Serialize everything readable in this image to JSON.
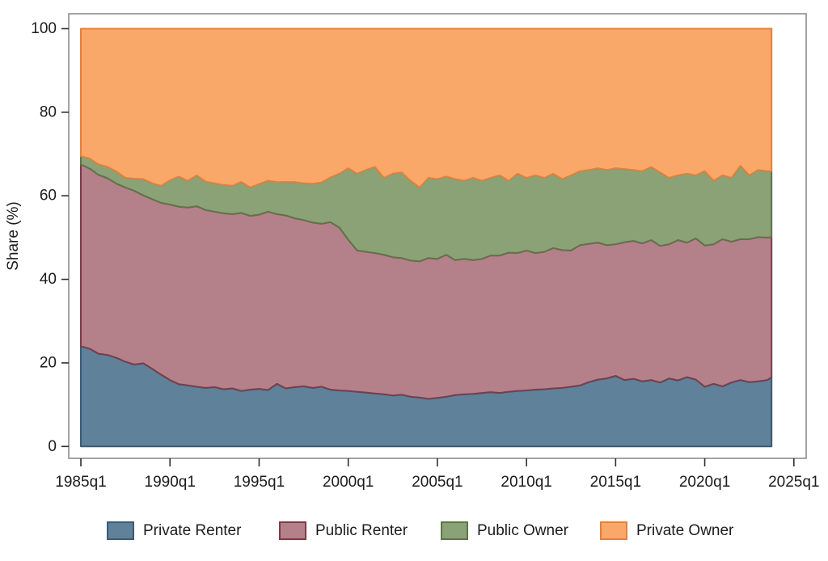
{
  "figure": {
    "background_color": "#ffffff",
    "frame_color": "#8d8d8d",
    "tick_color": "#2f2f2f",
    "text_color": "#1c1c1c"
  },
  "chart_data": {
    "type": "area",
    "stacked": true,
    "title": "",
    "xlabel": "",
    "ylabel": "Share (%)",
    "ylim": [
      0,
      100
    ],
    "xlim": [
      1985,
      2025
    ],
    "grid": false,
    "legend_position": "bottom",
    "x_axis": {
      "ticks": [
        {
          "value": 1985,
          "label": "1985q1"
        },
        {
          "value": 1990,
          "label": "1990q1"
        },
        {
          "value": 1995,
          "label": "1995q1"
        },
        {
          "value": 2000,
          "label": "2000q1"
        },
        {
          "value": 2005,
          "label": "2005q1"
        },
        {
          "value": 2010,
          "label": "2010q1"
        },
        {
          "value": 2015,
          "label": "2015q1"
        },
        {
          "value": 2020,
          "label": "2020q1"
        },
        {
          "value": 2025,
          "label": "2025q1"
        }
      ]
    },
    "y_axis": {
      "title": "Share (%)",
      "ticks": [
        {
          "value": 0,
          "label": "0"
        },
        {
          "value": 20,
          "label": "20"
        },
        {
          "value": 40,
          "label": "40"
        },
        {
          "value": 60,
          "label": "60"
        },
        {
          "value": 80,
          "label": "80"
        },
        {
          "value": 100,
          "label": "100"
        }
      ]
    },
    "x": [
      1985,
      1985.5,
      1986,
      1986.5,
      1987,
      1987.5,
      1988,
      1988.5,
      1989,
      1989.5,
      1990,
      1990.5,
      1991,
      1991.5,
      1992,
      1992.5,
      1993,
      1993.5,
      1994,
      1994.5,
      1995,
      1995.5,
      1996,
      1996.5,
      1997,
      1997.5,
      1998,
      1998.5,
      1999,
      1999.5,
      2000,
      2000.5,
      2001,
      2001.5,
      2002,
      2002.5,
      2003,
      2003.5,
      2004,
      2004.5,
      2005,
      2005.5,
      2006,
      2006.5,
      2007,
      2007.5,
      2008,
      2008.5,
      2009,
      2009.5,
      2010,
      2010.5,
      2011,
      2011.5,
      2012,
      2012.5,
      2013,
      2013.5,
      2014,
      2014.5,
      2015,
      2015.5,
      2016,
      2016.5,
      2017,
      2017.5,
      2018,
      2018.5,
      2019,
      2019.5,
      2020,
      2020.5,
      2021,
      2021.5,
      2022,
      2022.5,
      2023,
      2023.5,
      2023.75
    ],
    "series": [
      {
        "name": "Private Renter",
        "fill_color": "#5f8199",
        "line_color": "#3c5a76",
        "values": [
          24.0,
          23.4,
          22.2,
          21.9,
          21.2,
          20.3,
          19.6,
          19.9,
          18.6,
          17.2,
          15.9,
          14.9,
          14.6,
          14.3,
          14.0,
          14.2,
          13.7,
          13.9,
          13.3,
          13.6,
          13.8,
          13.5,
          15.0,
          13.9,
          14.2,
          14.4,
          14.0,
          14.3,
          13.6,
          13.4,
          13.3,
          13.1,
          12.9,
          12.7,
          12.5,
          12.2,
          12.4,
          11.9,
          11.7,
          11.4,
          11.6,
          11.9,
          12.3,
          12.5,
          12.6,
          12.8,
          13.0,
          12.8,
          13.1,
          13.3,
          13.4,
          13.6,
          13.7,
          13.9,
          14.0,
          14.3,
          14.6,
          15.4,
          16.0,
          16.3,
          16.9,
          15.9,
          16.2,
          15.6,
          15.9,
          15.3,
          16.3,
          15.8,
          16.6,
          16.0,
          14.3,
          15.0,
          14.4,
          15.3,
          15.9,
          15.4,
          15.6,
          15.9,
          16.5
        ]
      },
      {
        "name": "Public Renter",
        "fill_color": "#b4818b",
        "line_color": "#7e3b47",
        "values": [
          43.5,
          43.1,
          42.8,
          42.3,
          41.7,
          41.7,
          41.6,
          40.2,
          40.6,
          41.1,
          42.0,
          42.5,
          42.6,
          43.2,
          42.6,
          42.0,
          42.1,
          41.7,
          42.6,
          41.6,
          41.7,
          42.7,
          40.6,
          41.4,
          40.4,
          39.8,
          39.6,
          39.0,
          40.1,
          39.0,
          36.2,
          33.8,
          33.7,
          33.6,
          33.4,
          33.1,
          32.7,
          32.6,
          32.6,
          33.7,
          33.3,
          34.0,
          32.3,
          32.4,
          32.0,
          32.1,
          32.7,
          32.9,
          33.3,
          33.0,
          33.5,
          32.7,
          32.9,
          33.6,
          33.0,
          32.6,
          33.6,
          33.1,
          32.8,
          31.9,
          31.5,
          33.0,
          33.0,
          33.0,
          33.5,
          32.7,
          32.1,
          33.6,
          32.2,
          33.8,
          33.8,
          33.4,
          35.2,
          33.7,
          33.7,
          34.2,
          34.5,
          34.1,
          33.6
        ]
      },
      {
        "name": "Public Owner",
        "fill_color": "#8ba277",
        "line_color": "#5e7547",
        "values": [
          2.0,
          2.4,
          2.5,
          2.7,
          2.9,
          2.3,
          2.9,
          3.9,
          3.8,
          4.1,
          5.8,
          7.2,
          6.4,
          7.4,
          6.8,
          6.8,
          6.8,
          6.8,
          7.4,
          6.8,
          7.3,
          7.4,
          7.7,
          8.0,
          8.7,
          8.8,
          9.3,
          9.9,
          10.7,
          12.9,
          17.1,
          18.4,
          19.6,
          20.6,
          18.4,
          20.0,
          20.5,
          19.1,
          17.7,
          19.2,
          19.1,
          18.7,
          19.4,
          18.7,
          19.7,
          18.7,
          18.6,
          19.2,
          17.2,
          19.0,
          17.4,
          18.6,
          17.7,
          17.8,
          17.0,
          18.0,
          17.7,
          17.7,
          17.8,
          18.0,
          18.2,
          17.5,
          17.0,
          17.3,
          17.5,
          17.6,
          15.9,
          15.5,
          16.5,
          15.1,
          17.8,
          15.2,
          15.3,
          15.3,
          17.6,
          15.3,
          16.1,
          15.9,
          15.8
        ]
      },
      {
        "name": "Private Owner",
        "fill_color": "#faa869",
        "line_color": "#e5803a",
        "values": [
          30.5,
          31.1,
          32.5,
          33.1,
          34.2,
          35.7,
          35.9,
          36.0,
          37.0,
          37.6,
          36.3,
          35.4,
          36.4,
          35.1,
          36.6,
          37.0,
          37.4,
          37.6,
          36.7,
          38.0,
          37.2,
          36.4,
          36.7,
          36.7,
          36.7,
          37.0,
          37.1,
          36.8,
          35.6,
          34.7,
          33.4,
          34.7,
          33.8,
          33.1,
          35.7,
          34.7,
          34.4,
          36.4,
          38.0,
          35.7,
          36.0,
          35.4,
          36.0,
          36.4,
          35.7,
          36.4,
          35.7,
          35.1,
          36.4,
          34.7,
          35.7,
          35.1,
          35.7,
          34.7,
          36.0,
          35.1,
          34.1,
          33.8,
          33.4,
          33.8,
          33.4,
          33.6,
          33.8,
          34.1,
          33.1,
          34.4,
          35.7,
          35.1,
          34.7,
          35.1,
          34.1,
          36.4,
          35.1,
          35.7,
          32.8,
          35.1,
          33.8,
          34.1,
          34.1
        ]
      }
    ]
  },
  "legend": {
    "items": [
      {
        "label": "Private Renter"
      },
      {
        "label": "Public Renter"
      },
      {
        "label": "Public Owner"
      },
      {
        "label": "Private Owner"
      }
    ]
  }
}
